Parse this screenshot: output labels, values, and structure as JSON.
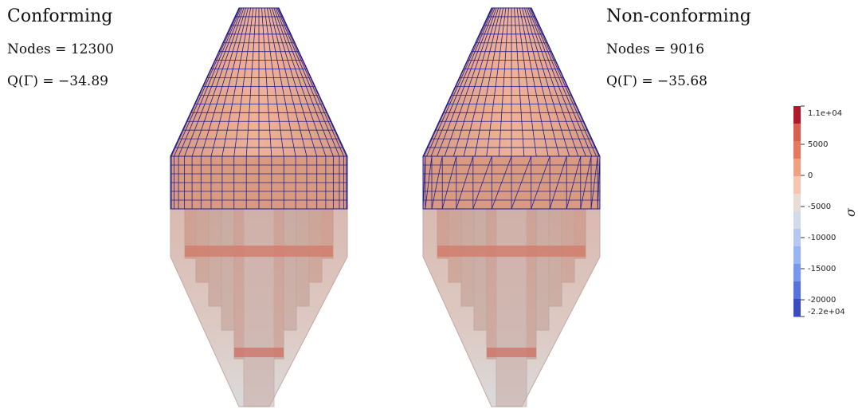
{
  "left_panel": {
    "title": "Conforming",
    "nodes": "Nodes = 12300",
    "quantity": "Q(Γ) = −34.89"
  },
  "right_panel": {
    "title": "Non-conforming",
    "nodes": "Nodes = 9016",
    "quantity": "Q(Γ) = −35.68"
  },
  "colorbar": {
    "title": "σ",
    "max_label": "1.1e+04",
    "min_label": "-2.2e+04",
    "tick_labels": [
      "5000",
      "0",
      "-5000",
      "-10000",
      "-15000",
      "-20000"
    ],
    "colors": [
      "#b2182b",
      "#d6604d",
      "#e6785e",
      "#f0a184",
      "#f7c6b0",
      "#e8dcd6",
      "#d2dbe8",
      "#b6c8ef",
      "#98b4f2",
      "#7898ee",
      "#5673dc",
      "#3b4cc0"
    ]
  },
  "colors": {
    "mesh_line": "#1f1f8f",
    "surface": "#e3a386",
    "translucent_body": "#cfb0a6"
  }
}
